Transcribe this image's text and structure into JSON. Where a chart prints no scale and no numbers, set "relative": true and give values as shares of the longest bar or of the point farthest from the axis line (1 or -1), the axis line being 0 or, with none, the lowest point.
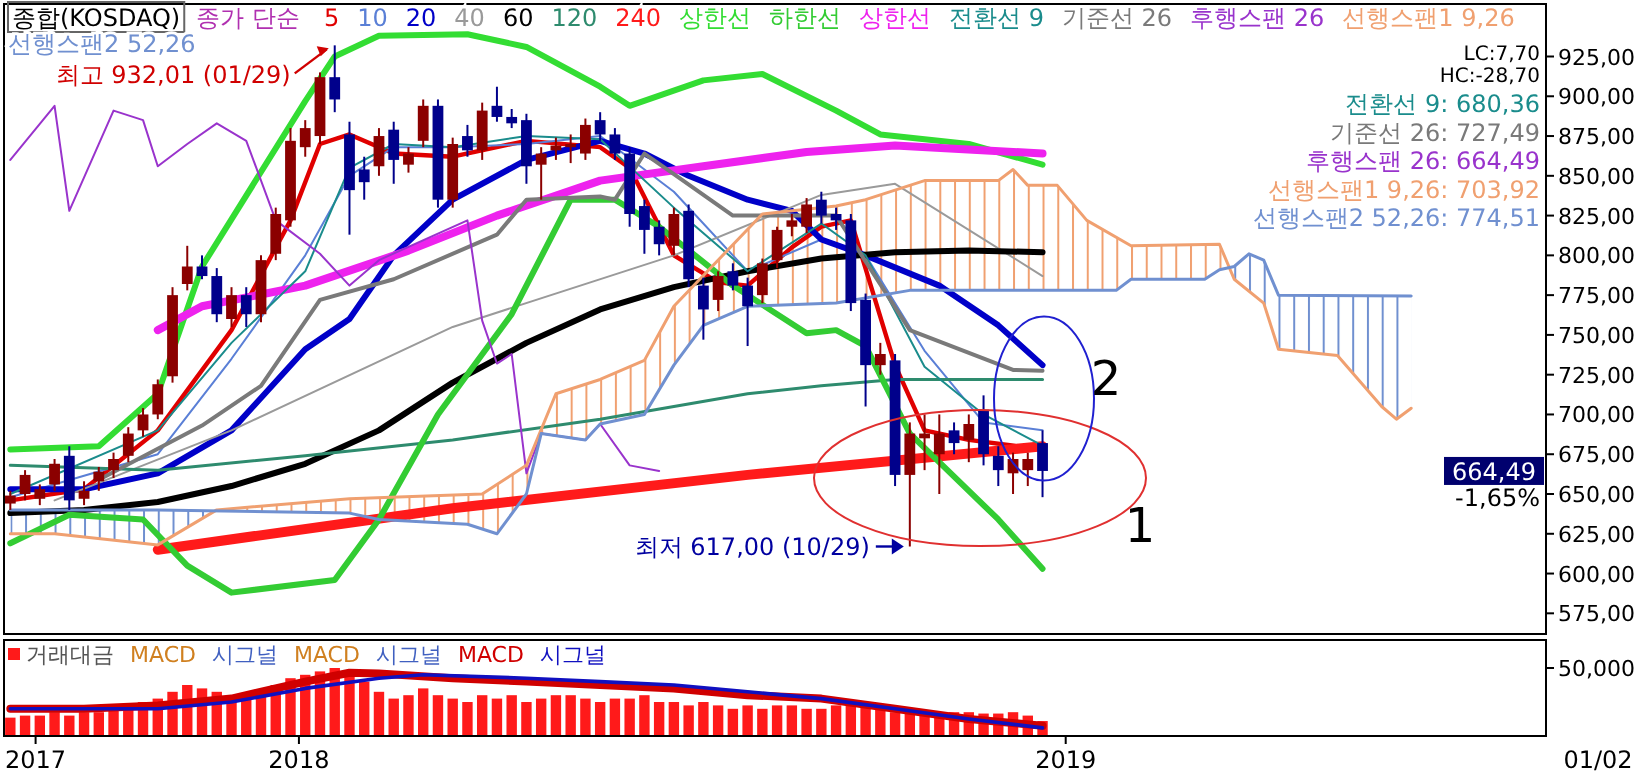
{
  "chart_data": [
    {
      "type": "candlestick",
      "title": "종합(KOSDAQ)",
      "legend_title": "종가 단순",
      "legend": "top left",
      "tick_labels": "y",
      "xlim": [
        "2017-08-25",
        "2019-08-27"
      ],
      "ylim": [
        562,
        958
      ],
      "yticks": [
        {
          "value": 575,
          "label": "575,00"
        },
        {
          "value": 600,
          "label": "600,00"
        },
        {
          "value": 625,
          "label": "625,00"
        },
        {
          "value": 650,
          "label": "650,00"
        },
        {
          "value": 675,
          "label": "675,00"
        },
        {
          "value": 700,
          "label": "700,00"
        },
        {
          "value": 725,
          "label": "725,00"
        },
        {
          "value": 750,
          "label": "750,00"
        },
        {
          "value": 775,
          "label": "775,00"
        },
        {
          "value": 800,
          "label": "800,00"
        },
        {
          "value": 825,
          "label": "825,00"
        },
        {
          "value": 850,
          "label": "850,00"
        },
        {
          "value": 875,
          "label": "875,00"
        },
        {
          "value": 900,
          "label": "900,00"
        },
        {
          "value": 925,
          "label": "925,00"
        }
      ],
      "x": [
        "2017-08-28",
        "2017-09-04",
        "2017-09-11",
        "2017-09-18",
        "2017-09-25",
        "2017-10-02",
        "2017-10-09",
        "2017-10-16",
        "2017-10-23",
        "2017-10-30",
        "2017-11-06",
        "2017-11-13",
        "2017-11-20",
        "2017-11-27",
        "2017-12-04",
        "2017-12-11",
        "2017-12-18",
        "2017-12-25",
        "2018-01-01",
        "2018-01-08",
        "2018-01-15",
        "2018-01-22",
        "2018-01-29",
        "2018-02-05",
        "2018-02-12",
        "2018-02-19",
        "2018-02-26",
        "2018-03-05",
        "2018-03-12",
        "2018-03-19",
        "2018-03-26",
        "2018-04-02",
        "2018-04-09",
        "2018-04-16",
        "2018-04-23",
        "2018-04-30",
        "2018-05-07",
        "2018-05-14",
        "2018-05-21",
        "2018-05-28",
        "2018-06-04",
        "2018-06-11",
        "2018-06-18",
        "2018-06-25",
        "2018-07-02",
        "2018-07-09",
        "2018-07-16",
        "2018-07-23",
        "2018-07-30",
        "2018-08-06",
        "2018-08-13",
        "2018-08-20",
        "2018-08-27",
        "2018-09-03",
        "2018-09-10",
        "2018-09-17",
        "2018-09-24",
        "2018-10-01",
        "2018-10-08",
        "2018-10-15",
        "2018-10-22",
        "2018-10-29",
        "2018-11-05",
        "2018-11-12",
        "2018-11-19",
        "2018-11-26",
        "2018-12-03",
        "2018-12-10",
        "2018-12-17",
        "2018-12-24",
        "2018-12-31"
      ],
      "ohlc": [
        [
          644,
          652,
          640,
          649
        ],
        [
          650,
          665,
          646,
          662
        ],
        [
          647,
          656,
          643,
          653
        ],
        [
          656,
          672,
          652,
          669
        ],
        [
          674,
          680,
          640,
          646
        ],
        [
          647,
          658,
          643,
          652
        ],
        [
          658,
          667,
          652,
          664
        ],
        [
          665,
          676,
          660,
          672
        ],
        [
          674,
          692,
          670,
          688
        ],
        [
          690,
          704,
          686,
          700
        ],
        [
          700,
          722,
          697,
          719
        ],
        [
          724,
          780,
          720,
          775
        ],
        [
          782,
          806,
          778,
          793
        ],
        [
          793,
          800,
          785,
          787
        ],
        [
          787,
          792,
          758,
          763
        ],
        [
          760,
          780,
          755,
          775
        ],
        [
          775,
          780,
          755,
          763
        ],
        [
          763,
          800,
          758,
          797
        ],
        [
          801,
          830,
          797,
          826
        ],
        [
          822,
          880,
          818,
          872
        ],
        [
          868,
          885,
          862,
          880
        ],
        [
          875,
          915,
          870,
          912
        ],
        [
          912,
          932.01,
          890,
          898
        ],
        [
          876,
          884,
          813,
          841
        ],
        [
          854,
          862,
          835,
          846
        ],
        [
          856,
          880,
          850,
          875
        ],
        [
          879,
          884,
          845,
          860
        ],
        [
          857,
          868,
          852,
          864
        ],
        [
          872,
          898,
          868,
          894
        ],
        [
          894,
          898,
          830,
          835
        ],
        [
          835,
          874,
          830,
          870
        ],
        [
          875,
          882,
          862,
          866
        ],
        [
          866,
          896,
          860,
          891
        ],
        [
          894,
          906,
          884,
          887
        ],
        [
          887,
          892,
          880,
          883
        ],
        [
          885,
          889,
          845,
          856
        ],
        [
          857,
          868,
          835,
          864
        ],
        [
          866,
          874,
          860,
          869
        ],
        [
          868,
          876,
          858,
          870
        ],
        [
          864,
          886,
          860,
          882
        ],
        [
          885,
          890,
          872,
          876
        ],
        [
          876,
          880,
          860,
          864
        ],
        [
          864,
          868,
          818,
          826
        ],
        [
          831,
          835,
          801,
          816
        ],
        [
          818,
          822,
          800,
          807
        ],
        [
          806,
          830,
          800,
          826
        ],
        [
          828,
          832,
          780,
          785
        ],
        [
          781,
          786,
          747,
          766
        ],
        [
          772,
          790,
          765,
          787
        ],
        [
          790,
          795,
          778,
          781
        ],
        [
          781,
          786,
          743,
          768
        ],
        [
          775,
          798,
          770,
          795
        ],
        [
          797,
          818,
          792,
          816
        ],
        [
          818,
          826,
          812,
          822
        ],
        [
          818,
          836,
          814,
          832
        ],
        [
          835,
          840,
          820,
          825
        ],
        [
          826,
          830,
          816,
          822
        ],
        [
          822,
          826,
          765,
          770
        ],
        [
          772,
          776,
          705,
          731
        ],
        [
          731,
          745,
          725,
          738
        ],
        [
          734,
          738,
          655,
          662
        ],
        [
          662,
          695,
          617,
          688
        ],
        [
          685,
          700,
          665,
          688
        ],
        [
          675,
          700,
          650,
          688
        ],
        [
          690,
          695,
          675,
          682
        ],
        [
          684,
          700,
          670,
          694
        ],
        [
          703,
          712,
          668,
          675
        ],
        [
          674,
          680,
          655,
          665
        ],
        [
          663,
          676,
          650,
          672
        ],
        [
          665,
          676,
          655,
          672
        ],
        [
          682,
          690,
          648,
          664.49
        ]
      ],
      "series": [
        {
          "name": "5",
          "type": "line",
          "color": "#e00000",
          "x": [
            "2017-08-28",
            "2017-10-02",
            "2017-11-06",
            "2017-12-11",
            "2018-01-08",
            "2018-01-22",
            "2018-02-05",
            "2018-02-26",
            "2018-03-26",
            "2018-04-30",
            "2018-06-04",
            "2018-06-18",
            "2018-07-09",
            "2018-07-30",
            "2018-08-13",
            "2018-09-03",
            "2018-09-17",
            "2018-10-01",
            "2018-10-22",
            "2018-11-05",
            "2018-11-26",
            "2018-12-31"
          ],
          "values": [
            646,
            653,
            690,
            753,
            822,
            870,
            876,
            864,
            862,
            872,
            868,
            855,
            800,
            783,
            781,
            805,
            818,
            822,
            731,
            690,
            684,
            678
          ]
        },
        {
          "name": "10",
          "type": "line",
          "color": "#5a7fd6",
          "x": [
            "2017-08-28",
            "2017-11-06",
            "2017-12-11",
            "2018-01-15",
            "2018-02-05",
            "2018-02-26",
            "2018-03-26",
            "2018-04-30",
            "2018-06-04",
            "2018-07-09",
            "2018-08-13",
            "2018-09-17",
            "2018-10-08",
            "2018-11-05",
            "2018-12-03",
            "2018-12-31"
          ],
          "values": [
            648,
            675,
            735,
            800,
            850,
            868,
            868,
            870,
            875,
            840,
            790,
            810,
            800,
            740,
            695,
            690
          ]
        },
        {
          "name": "20",
          "type": "line",
          "color": "#0000c8",
          "x": [
            "2017-08-28",
            "2017-10-02",
            "2017-11-06",
            "2017-12-11",
            "2018-01-15",
            "2018-02-05",
            "2018-02-26",
            "2018-03-26",
            "2018-04-30",
            "2018-06-04",
            "2018-06-25",
            "2018-07-16",
            "2018-08-13",
            "2018-09-03",
            "2018-09-17",
            "2018-10-08",
            "2018-11-12",
            "2018-12-10",
            "2018-12-31"
          ],
          "values": [
            653,
            653,
            663,
            690,
            741,
            760,
            800,
            835,
            860,
            872,
            864,
            850,
            835,
            828,
            810,
            800,
            781,
            756,
            731
          ]
        },
        {
          "name": "40",
          "type": "line",
          "color": "#9a9a9a",
          "x": [
            "2017-09-18",
            "2017-12-11",
            "2018-03-26",
            "2018-07-09",
            "2018-09-17",
            "2018-10-22",
            "2018-12-31"
          ],
          "values": [
            646,
            690,
            755,
            800,
            838,
            845,
            787
          ]
        },
        {
          "name": "60",
          "type": "line",
          "color": "#000000",
          "x": [
            "2017-08-28",
            "2017-10-02",
            "2017-11-06",
            "2017-12-11",
            "2018-01-15",
            "2018-02-19",
            "2018-03-26",
            "2018-04-30",
            "2018-06-04",
            "2018-07-09",
            "2018-08-13",
            "2018-09-17",
            "2018-10-22",
            "2018-11-26",
            "2018-12-31"
          ],
          "values": [
            638,
            640,
            645,
            655,
            669,
            690,
            720,
            745,
            766,
            780,
            790,
            798,
            802,
            803,
            802
          ]
        },
        {
          "name": "120",
          "type": "line",
          "color": "#2e8b6e",
          "x": [
            "2017-08-28",
            "2017-11-06",
            "2018-01-15",
            "2018-03-26",
            "2018-06-04",
            "2018-08-13",
            "2018-09-17",
            "2018-10-22",
            "2018-12-31"
          ],
          "values": [
            668,
            665,
            674,
            684,
            697,
            713,
            718,
            722,
            722
          ]
        },
        {
          "name": "240",
          "type": "line",
          "color": "#ff1a1a",
          "x": [
            "2017-11-06",
            "2018-03-26",
            "2018-08-13",
            "2018-12-31"
          ],
          "values": [
            615,
            641,
            662,
            680
          ]
        },
        {
          "name": "상한선",
          "type": "line",
          "color": "#33dd33",
          "x": [
            "2017-08-28",
            "2017-10-09",
            "2017-11-06",
            "2017-11-27",
            "2018-01-15",
            "2018-01-29",
            "2018-02-19",
            "2018-04-02",
            "2018-04-30",
            "2018-06-04",
            "2018-06-18",
            "2018-07-23",
            "2018-08-20",
            "2018-09-24",
            "2018-10-15",
            "2018-11-26",
            "2018-12-31"
          ],
          "values": [
            678,
            680,
            713,
            793,
            897,
            925,
            938,
            939,
            931,
            906,
            894,
            910,
            914,
            891,
            876,
            870,
            857
          ]
        },
        {
          "name": "하한선",
          "type": "line",
          "color": "#33cc33",
          "x": [
            "2017-08-28",
            "2017-09-25",
            "2017-10-30",
            "2017-11-20",
            "2017-12-11",
            "2018-01-29",
            "2018-02-19",
            "2018-03-19",
            "2018-04-23",
            "2018-05-21",
            "2018-06-11",
            "2018-07-02",
            "2018-08-06",
            "2018-09-10",
            "2018-09-24",
            "2018-10-08",
            "2018-10-29",
            "2018-12-10",
            "2018-12-31"
          ],
          "values": [
            619,
            637,
            634,
            605,
            588,
            596,
            634,
            700,
            763,
            835,
            835,
            818,
            781,
            751,
            753,
            743,
            688,
            634,
            603
          ]
        },
        {
          "name": "상한선",
          "type": "line",
          "color": "#ee22ee",
          "x": [
            "2017-11-06",
            "2017-11-27",
            "2018-01-15",
            "2018-03-05",
            "2018-04-16",
            "2018-06-04",
            "2018-07-23",
            "2018-09-10",
            "2018-10-22",
            "2018-12-31"
          ],
          "values": [
            753,
            768,
            781,
            803,
            825,
            847,
            856,
            865,
            869,
            864
          ]
        },
        {
          "name": "전환선 9",
          "type": "line",
          "color": "#1a8c8c",
          "x": [
            "2017-08-28",
            "2017-11-06",
            "2017-12-11",
            "2018-01-15",
            "2018-02-05",
            "2018-02-26",
            "2018-03-26",
            "2018-04-30",
            "2018-06-04",
            "2018-07-09",
            "2018-08-13",
            "2018-09-17",
            "2018-10-08",
            "2018-11-05",
            "2018-12-03",
            "2018-12-31"
          ],
          "values": [
            650,
            690,
            745,
            790,
            855,
            870,
            868,
            875,
            873,
            830,
            790,
            820,
            800,
            730,
            700,
            680.36
          ]
        },
        {
          "name": "기준선 26",
          "type": "line",
          "color": "#7a7a7a",
          "x": [
            "2017-10-09",
            "2017-11-27",
            "2017-12-25",
            "2018-01-22",
            "2018-02-26",
            "2018-04-16",
            "2018-04-30",
            "2018-06-04",
            "2018-06-11",
            "2018-06-25",
            "2018-07-09",
            "2018-08-06",
            "2018-09-24",
            "2018-10-29",
            "2018-12-17",
            "2018-12-31"
          ],
          "values": [
            659,
            693,
            718,
            772,
            785,
            813,
            835,
            837,
            835,
            864,
            851,
            825,
            825,
            753,
            728,
            727.49
          ]
        },
        {
          "name": "후행스팬 26",
          "type": "line",
          "color": "#9933cc",
          "x": [
            "2017-08-28",
            "2017-09-18",
            "2017-09-25",
            "2017-10-16",
            "2017-10-30",
            "2017-11-06",
            "2017-11-20",
            "2017-12-04",
            "2017-12-18",
            "2018-01-01",
            "2018-01-22",
            "2018-02-05",
            "2018-02-19",
            "2018-04-02",
            "2018-04-09",
            "2018-04-16",
            "2018-04-23",
            "2018-04-30",
            "2018-05-07",
            "2018-05-28",
            "2018-06-04",
            "2018-06-18",
            "2018-07-02"
          ],
          "values": [
            860,
            894,
            828,
            891,
            885,
            856,
            870,
            883,
            872,
            822,
            801,
            781,
            797,
            822,
            759,
            732,
            738,
            663,
            688,
            684,
            694,
            668,
            664.49
          ]
        },
        {
          "name": "선행스팬1 9,26",
          "type": "line",
          "color": "#f0a070",
          "x": [
            "2017-08-28",
            "2017-09-18",
            "2017-11-06",
            "2017-12-04",
            "2018-02-05",
            "2018-04-09",
            "2018-04-30",
            "2018-05-14",
            "2018-06-04",
            "2018-06-25",
            "2018-07-09",
            "2018-08-20",
            "2018-09-24",
            "2018-10-08",
            "2018-11-05",
            "2018-12-10",
            "2018-12-17",
            "2018-12-24",
            "2019-01-07",
            "2019-01-21",
            "2019-02-11",
            "2019-03-25",
            "2019-04-01",
            "2019-04-15",
            "2019-04-22",
            "2019-05-20",
            "2019-06-10",
            "2019-06-17",
            "2019-06-24"
          ],
          "values": [
            625,
            625,
            618,
            640,
            647,
            650,
            668,
            713,
            722,
            734,
            768,
            826,
            831,
            835,
            847,
            847,
            854,
            844,
            844,
            822,
            806,
            807,
            785,
            770,
            741,
            737,
            705,
            697,
            703.92
          ]
        },
        {
          "name": "선행스팬2 52,26",
          "type": "line",
          "color": "#7090d0",
          "x": [
            "2017-08-28",
            "2017-11-06",
            "2018-02-05",
            "2018-02-19",
            "2018-04-02",
            "2018-04-16",
            "2018-04-30",
            "2018-05-07",
            "2018-05-28",
            "2018-06-04",
            "2018-06-25",
            "2018-07-09",
            "2018-07-23",
            "2018-08-13",
            "2018-09-24",
            "2018-10-29",
            "2019-02-04",
            "2019-02-11",
            "2019-03-18",
            "2019-03-25",
            "2019-04-01",
            "2019-04-08",
            "2019-04-15",
            "2019-04-22",
            "2019-06-24"
          ],
          "values": [
            640,
            640,
            638,
            634,
            631,
            625,
            650,
            688,
            684,
            694,
            700,
            731,
            756,
            768,
            770,
            778,
            778,
            785,
            785,
            791,
            793,
            801,
            797,
            775,
            774.51
          ]
        }
      ],
      "annotations": [
        {
          "text": "최고 932,01 (01/29)",
          "x": "2018-01-29",
          "y": 932.01
        },
        {
          "text": "최저 617,00 (10/29)",
          "x": "2018-10-29",
          "y": 617
        },
        "1",
        "2",
        "전환선 9: 680,36",
        "기준선 26: 727,49",
        "후행스팬 26: 664,49",
        "선행스팬1 9,26: 703,92",
        "선행스팬2 52,26: 774,51",
        "LC:7,70",
        "HC:-28,70",
        "664,49",
        "-1,65%"
      ]
    },
    {
      "type": "bar",
      "relative": true,
      "legend": "top left",
      "tick_labels": "x",
      "xlim": [
        "2017-08-25",
        "2019-08-27"
      ],
      "xticks": [
        {
          "value": "2017-09-09",
          "label": "2017"
        },
        {
          "value": "2018-01-12",
          "label": "2018"
        },
        {
          "value": "2019-01-11",
          "label": "2019"
        }
      ],
      "series": [
        {
          "name": "거래대금",
          "type": "bar",
          "color": "#ff1a1a",
          "x": [
            "2017-08-28",
            "2017-09-04",
            "2017-09-11",
            "2017-09-18",
            "2017-09-25",
            "2017-10-02",
            "2017-10-09",
            "2017-10-16",
            "2017-10-23",
            "2017-10-30",
            "2017-11-06",
            "2017-11-13",
            "2017-11-20",
            "2017-11-27",
            "2017-12-04",
            "2017-12-11",
            "2017-12-18",
            "2017-12-25",
            "2018-01-01",
            "2018-01-08",
            "2018-01-15",
            "2018-01-22",
            "2018-01-29",
            "2018-02-05",
            "2018-02-12",
            "2018-02-19",
            "2018-02-26",
            "2018-03-05",
            "2018-03-12",
            "2018-03-19",
            "2018-03-26",
            "2018-04-02",
            "2018-04-09",
            "2018-04-16",
            "2018-04-23",
            "2018-04-30",
            "2018-05-07",
            "2018-05-14",
            "2018-05-21",
            "2018-05-28",
            "2018-06-04",
            "2018-06-11",
            "2018-06-18",
            "2018-06-25",
            "2018-07-02",
            "2018-07-09",
            "2018-07-16",
            "2018-07-23",
            "2018-07-30",
            "2018-08-06",
            "2018-08-13",
            "2018-08-20",
            "2018-08-27",
            "2018-09-03",
            "2018-09-10",
            "2018-09-17",
            "2018-09-24",
            "2018-10-01",
            "2018-10-08",
            "2018-10-15",
            "2018-10-22",
            "2018-10-29",
            "2018-11-05",
            "2018-11-12",
            "2018-11-19",
            "2018-11-26",
            "2018-12-03",
            "2018-12-10",
            "2018-12-17",
            "2018-12-24",
            "2018-12-31"
          ],
          "values": [
            0.27,
            0.3,
            0.3,
            0.35,
            0.3,
            0.35,
            0.35,
            0.4,
            0.45,
            0.5,
            0.55,
            0.65,
            0.75,
            0.7,
            0.65,
            0.6,
            0.6,
            0.65,
            0.75,
            0.85,
            0.9,
            0.95,
            1.0,
            0.95,
            0.8,
            0.65,
            0.55,
            0.6,
            0.7,
            0.6,
            0.55,
            0.5,
            0.6,
            0.55,
            0.6,
            0.5,
            0.55,
            0.6,
            0.6,
            0.55,
            0.5,
            0.55,
            0.55,
            0.6,
            0.5,
            0.5,
            0.45,
            0.5,
            0.45,
            0.4,
            0.45,
            0.4,
            0.45,
            0.45,
            0.4,
            0.4,
            0.45,
            0.5,
            0.45,
            0.4,
            0.35,
            0.4,
            0.35,
            0.33,
            0.35,
            0.35,
            0.33,
            0.33,
            0.35,
            0.3,
            0.22
          ]
        },
        {
          "name": "MACD",
          "type": "line",
          "color": "#d00000",
          "x": [
            "2017-08-28",
            "2017-10-02",
            "2017-11-06",
            "2017-12-11",
            "2018-01-15",
            "2018-02-05",
            "2018-02-19",
            "2018-03-26",
            "2018-04-30",
            "2018-06-04",
            "2018-07-09",
            "2018-08-13",
            "2018-09-17",
            "2018-10-22",
            "2018-11-26",
            "2018-12-31"
          ],
          "values": [
            0.4,
            0.4,
            0.45,
            0.55,
            0.8,
            0.93,
            0.92,
            0.85,
            0.8,
            0.75,
            0.7,
            0.6,
            0.55,
            0.4,
            0.25,
            0.15
          ]
        },
        {
          "name": "시그널",
          "type": "line",
          "color": "#1010c0",
          "x": [
            "2017-08-28",
            "2017-10-02",
            "2017-11-06",
            "2017-12-11",
            "2018-01-15",
            "2018-02-19",
            "2018-03-12",
            "2018-04-30",
            "2018-06-04",
            "2018-07-09",
            "2018-08-13",
            "2018-09-17",
            "2018-10-22",
            "2018-11-26",
            "2018-12-31"
          ],
          "values": [
            0.4,
            0.4,
            0.4,
            0.5,
            0.7,
            0.85,
            0.9,
            0.85,
            0.8,
            0.75,
            0.65,
            0.55,
            0.4,
            0.25,
            0.12
          ]
        }
      ],
      "annotations": [
        "MACD",
        "시그널",
        "MACD",
        "시그널",
        "50,000",
        "01/02"
      ]
    }
  ]
}
